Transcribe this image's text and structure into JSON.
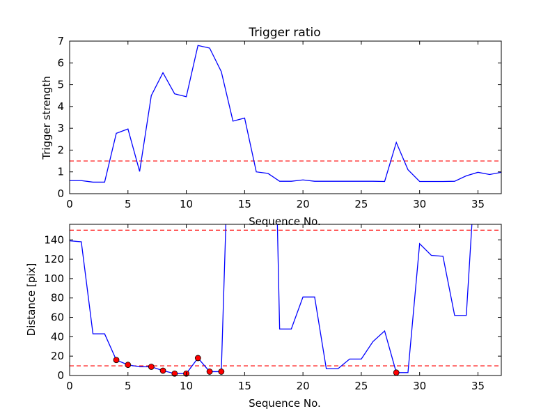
{
  "chart_data": [
    {
      "type": "line",
      "title": "Trigger ratio",
      "xlabel": "Sequence No.",
      "ylabel": "Trigger strength",
      "xlim": [
        0,
        37
      ],
      "ylim": [
        0,
        7
      ],
      "xticks": [
        0,
        5,
        10,
        15,
        20,
        25,
        30,
        35
      ],
      "yticks": [
        0,
        1,
        2,
        3,
        4,
        5,
        6,
        7
      ],
      "grid": false,
      "series": [
        {
          "color": "#0000ff",
          "x": [
            0,
            1,
            2,
            3,
            4,
            5,
            6,
            7,
            8,
            9,
            10,
            11,
            12,
            13,
            14,
            15,
            16,
            17,
            18,
            19,
            20,
            21,
            22,
            23,
            24,
            25,
            26,
            27,
            28,
            29,
            30,
            31,
            32,
            33,
            34,
            35,
            36,
            37
          ],
          "y": [
            0.6,
            0.6,
            0.53,
            0.53,
            2.77,
            2.97,
            1.02,
            4.5,
            5.55,
            4.58,
            4.45,
            6.8,
            6.68,
            5.6,
            3.33,
            3.47,
            1.0,
            0.93,
            0.57,
            0.57,
            0.63,
            0.57,
            0.57,
            0.57,
            0.57,
            0.57,
            0.57,
            0.56,
            2.35,
            1.1,
            0.56,
            0.56,
            0.56,
            0.57,
            0.82,
            0.98,
            0.88,
            0.98
          ]
        }
      ],
      "hlines": [
        {
          "y": 1.5,
          "color": "#ff0000",
          "style": "dashed"
        }
      ]
    },
    {
      "type": "line",
      "title": "",
      "xlabel": "Sequence No.",
      "ylabel": "Distance [pix]",
      "xlim": [
        0,
        37
      ],
      "ylim": [
        0,
        156
      ],
      "xticks": [
        0,
        5,
        10,
        15,
        20,
        25,
        30,
        35
      ],
      "yticks": [
        0,
        20,
        40,
        60,
        80,
        100,
        120,
        140
      ],
      "grid": false,
      "series": [
        {
          "color": "#0000ff",
          "x": [
            0,
            1,
            2,
            3,
            4,
            5,
            6,
            7,
            8,
            9,
            10,
            11,
            12,
            13,
            13.4,
            17.8,
            18,
            19,
            20,
            21,
            22,
            23,
            24,
            25,
            26,
            27,
            28,
            29,
            30,
            31,
            32,
            33,
            34,
            34.5
          ],
          "y": [
            139,
            138,
            43,
            43,
            16,
            11,
            9,
            9,
            5,
            2,
            2,
            18,
            4,
            4,
            160,
            160,
            48,
            48,
            81,
            81,
            7,
            7,
            17,
            17,
            35,
            46,
            3,
            3,
            136,
            124,
            123,
            62,
            62,
            160
          ]
        }
      ],
      "markers": {
        "color": "#ff0000",
        "x": [
          4,
          5,
          7,
          8,
          9,
          10,
          11,
          12,
          13,
          28
        ],
        "y": [
          16,
          11,
          9,
          5,
          2,
          2,
          18,
          4,
          4,
          3
        ]
      },
      "hlines": [
        {
          "y": 150,
          "color": "#ff0000",
          "style": "dashed"
        },
        {
          "y": 10,
          "color": "#ff0000",
          "style": "dashed"
        }
      ]
    }
  ]
}
